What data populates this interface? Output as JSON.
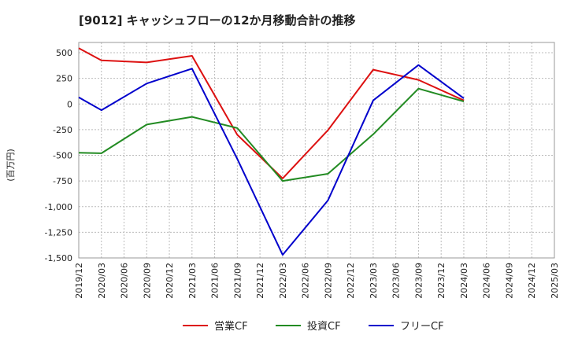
{
  "chart_data": {
    "type": "line",
    "title": "[9012]  キャッシュフローの12か月移動合計の推移",
    "ylabel": "(百万円)",
    "xlabel": "",
    "ylim": [
      -1500,
      600
    ],
    "yticks": [
      500,
      250,
      0,
      -250,
      -500,
      -750,
      -1000,
      -1250,
      -1500
    ],
    "ytick_labels": [
      "500",
      "250",
      "0",
      "-250",
      "-500",
      "-750",
      "-1,000",
      "-1,250",
      "-1,500"
    ],
    "categories": [
      "2019/12",
      "2020/03",
      "2020/06",
      "2020/09",
      "2020/12",
      "2021/03",
      "2021/06",
      "2021/09",
      "2021/12",
      "2022/03",
      "2022/06",
      "2022/09",
      "2022/12",
      "2023/03",
      "2023/06",
      "2023/09",
      "2023/12",
      "2024/03",
      "2024/06",
      "2024/09",
      "2024/12",
      "2025/03"
    ],
    "grid": true,
    "legend_position": "bottom",
    "series": [
      {
        "name": "営業CF",
        "color": "#dd1111",
        "values": [
          545,
          425,
          null,
          405,
          null,
          470,
          null,
          -300,
          null,
          -725,
          null,
          -255,
          null,
          335,
          null,
          235,
          null,
          35,
          null,
          null,
          null,
          null
        ]
      },
      {
        "name": "投資CF",
        "color": "#228b22",
        "values": [
          -475,
          -480,
          null,
          -200,
          null,
          -125,
          null,
          -235,
          null,
          -750,
          null,
          -680,
          null,
          -295,
          null,
          150,
          null,
          25,
          null,
          null,
          null,
          null
        ]
      },
      {
        "name": "フリーCF",
        "color": "#0000cc",
        "values": [
          65,
          -60,
          null,
          200,
          null,
          345,
          null,
          -535,
          null,
          -1470,
          null,
          -940,
          null,
          35,
          null,
          380,
          null,
          55,
          null,
          null,
          null,
          null
        ]
      }
    ]
  }
}
